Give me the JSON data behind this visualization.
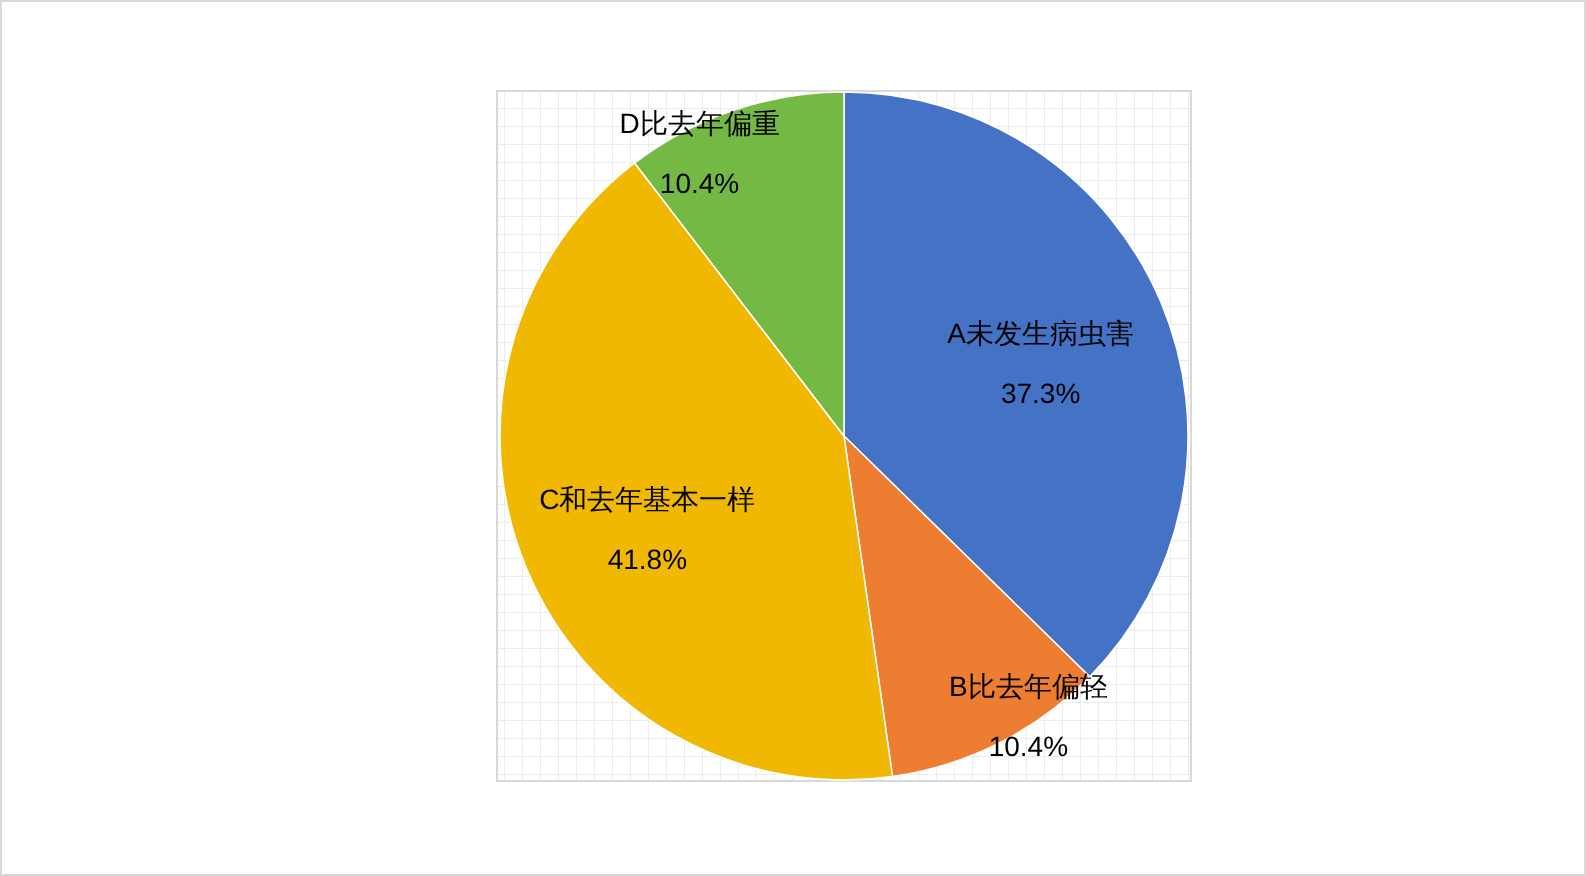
{
  "chart_data": {
    "type": "pie",
    "categories": [
      "A未发生病虫害",
      "B比去年偏轻",
      "C和去年基本一样",
      "D比去年偏重"
    ],
    "values": [
      37.3,
      10.4,
      41.8,
      10.4
    ],
    "colors": [
      "#4472c4",
      "#ed7d31",
      "#f0b800",
      "#74b944"
    ],
    "value_labels": [
      "37.3%",
      "10.4%",
      "41.8%",
      "10.4%"
    ]
  }
}
